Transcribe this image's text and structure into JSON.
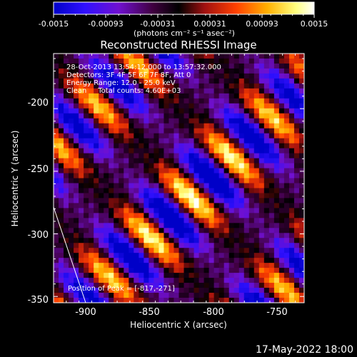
{
  "chart_data": {
    "type": "heatmap",
    "title": "Reconstructed RHESSI Image",
    "xlabel": "Heliocentric X (arcsec)",
    "ylabel": "Heliocentric Y (arcsec)",
    "xlim": [
      -925,
      -728
    ],
    "ylim": [
      -355,
      -156
    ],
    "xticks": [
      -900,
      -850,
      -800,
      -750
    ],
    "xtick_labels": [
      "-900",
      "-850",
      "-800",
      "-750"
    ],
    "yticks": [
      -200,
      -250,
      -300,
      -350
    ],
    "ytick_labels": [
      "-200",
      "-250",
      "-300",
      "-350"
    ],
    "colorbar": {
      "range": [
        -0.0015,
        0.0015
      ],
      "tick_labels": [
        "-0.0015",
        "-0.00093",
        "-0.00031",
        "0.00031",
        "0.00093",
        "0.0015"
      ],
      "units_label": "(photons cm⁻² s⁻¹ asec⁻²)",
      "colors": [
        "#0000c8",
        "#3010ff",
        "#7010d0",
        "#400040",
        "#000000",
        "#a01010",
        "#ff4000",
        "#ffb000",
        "#ffff80",
        "#ffffff"
      ]
    },
    "annotations": [
      "28-Oct-2013 13:54:12.000 to 13:57:32.000",
      "Detectors: 3F 4F 5F 6F 7F 8F, Att 0",
      "Energy Range: 12.0 - 25.0 keV",
      "Clean     Total counts: 4.60E+03"
    ],
    "peak_label": "Position of Peak = [-817,-271]",
    "peak": [
      -817,
      -271
    ],
    "stripe_direction": "upper-left to lower-right diagonal",
    "limb_line": true
  },
  "footer": {
    "date": "17-May-2022 18:00"
  }
}
